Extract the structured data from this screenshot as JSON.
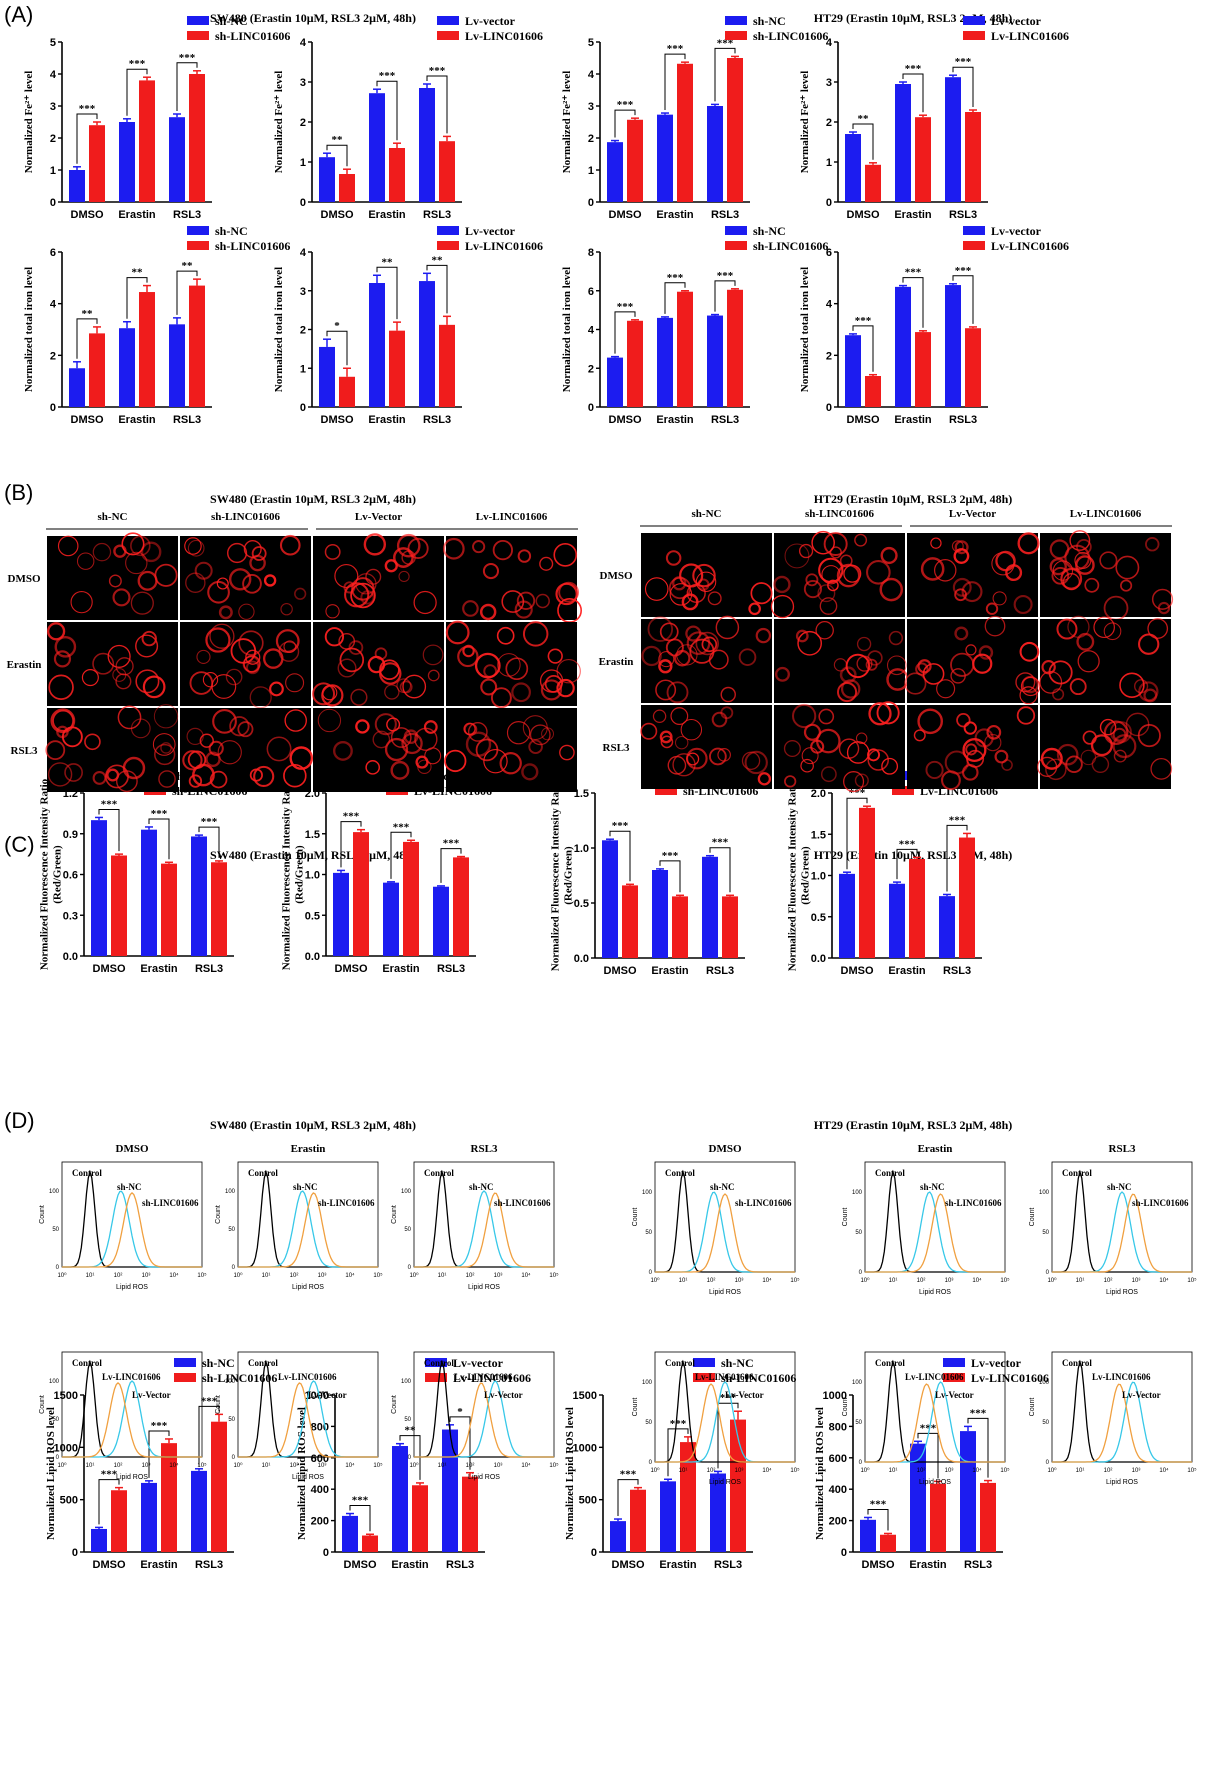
{
  "panel_letters": [
    "(A)",
    "(B)",
    "(C)",
    "(D)"
  ],
  "titles": {
    "A_sw480": "SW480  (Erastin 10μM, RSL3 2μM, 48h)",
    "A_ht29": "HT29  (Erastin 10μM, RSL3 2μM, 48h)",
    "B_sw480": "SW480  (Erastin 10μM, RSL3 2μM, 48h)",
    "B_ht29": "HT29  (Erastin 10μM, RSL3 2μM, 48h)",
    "C_sw480": "SW480  (Erastin 10μM, RSL3 2μM, 48h)",
    "C_ht29": "HT29  (Erastin 10μM, RSL3 2μM, 48h)",
    "D_sw480": "SW480  (Erastin 10μM, RSL3 2μM, 48h)",
    "D_ht29": "HT29  (Erastin 10μM, RSL3 2μM, 48h)"
  },
  "colors": {
    "blue": "#1c1cf0",
    "red": "#f01c1c",
    "black": "#000000",
    "cyan": "#38c8e8",
    "orange": "#f0a040",
    "micro_bg": "#000000",
    "micro_cell": "#ff2020"
  },
  "microscopy": {
    "columns": [
      "sh-NC",
      "sh-LINC01606",
      "Lv-Vector",
      "Lv-LINC01606"
    ],
    "rows": [
      "DMSO",
      "Erastin",
      "RSL3"
    ]
  },
  "flow": {
    "col_titles": [
      "DMSO",
      "Erastin",
      "RSL3"
    ],
    "xlabel": "Lipid ROS",
    "ylabel": "Count",
    "xticks": [
      "10⁰",
      "10¹",
      "10²",
      "10³",
      "10⁴",
      "10⁵"
    ],
    "control_label": "Control",
    "sh_labels": [
      "sh-NC",
      "sh-LINC01606"
    ],
    "lv_labels": [
      "Lv-LINC01606",
      "Lv-Vector"
    ]
  },
  "chart_data": [
    {
      "id": "A1",
      "type": "bar",
      "categories": [
        "DMSO",
        "Erastin",
        "RSL3"
      ],
      "ylabel": "Normalized Fe²⁺ level",
      "ylim": [
        0,
        5
      ],
      "yticks": [
        0,
        1,
        2,
        3,
        4,
        5
      ],
      "series": [
        {
          "name": "sh-NC",
          "values": [
            1.0,
            2.5,
            2.65
          ]
        },
        {
          "name": "sh-LINC01606",
          "values": [
            2.4,
            3.8,
            4.0
          ]
        }
      ],
      "errors": [
        [
          0.1,
          0.1,
          0.1
        ],
        [
          0.1,
          0.1,
          0.1
        ]
      ],
      "significance": [
        "***",
        "***",
        "***"
      ]
    },
    {
      "id": "A2",
      "type": "bar",
      "categories": [
        "DMSO",
        "Erastin",
        "RSL3"
      ],
      "ylabel": "Normalized Fe²⁺ level",
      "ylim": [
        0,
        4
      ],
      "yticks": [
        0,
        1,
        2,
        3,
        4
      ],
      "series": [
        {
          "name": "Lv-vector",
          "values": [
            1.12,
            2.72,
            2.85
          ]
        },
        {
          "name": "Lv-LINC01606",
          "values": [
            0.7,
            1.35,
            1.52
          ]
        }
      ],
      "errors": [
        [
          0.1,
          0.1,
          0.1
        ],
        [
          0.12,
          0.12,
          0.12
        ]
      ],
      "significance": [
        "**",
        "***",
        "***"
      ]
    },
    {
      "id": "A3",
      "type": "bar",
      "categories": [
        "DMSO",
        "Erastin",
        "RSL3"
      ],
      "ylabel": "Normalized Fe²⁺ level",
      "ylim": [
        0,
        5
      ],
      "yticks": [
        0,
        1,
        2,
        3,
        4,
        5
      ],
      "series": [
        {
          "name": "sh-NC",
          "values": [
            1.87,
            2.73,
            3.0
          ]
        },
        {
          "name": "sh-LINC01606",
          "values": [
            2.57,
            4.32,
            4.5
          ]
        }
      ],
      "errors": [
        [
          0.05,
          0.05,
          0.05
        ],
        [
          0.05,
          0.05,
          0.05
        ]
      ],
      "significance": [
        "***",
        "***",
        "***"
      ]
    },
    {
      "id": "A4",
      "type": "bar",
      "categories": [
        "DMSO",
        "Erastin",
        "RSL3"
      ],
      "ylabel": "Normalized Fe²⁺ level",
      "ylim": [
        0,
        4
      ],
      "yticks": [
        0,
        1,
        2,
        3,
        4
      ],
      "series": [
        {
          "name": "Lv-vector",
          "values": [
            1.7,
            2.95,
            3.12
          ]
        },
        {
          "name": "Lv-LINC01606",
          "values": [
            0.93,
            2.12,
            2.25
          ]
        }
      ],
      "errors": [
        [
          0.05,
          0.05,
          0.05
        ],
        [
          0.05,
          0.05,
          0.05
        ]
      ],
      "significance": [
        "**",
        "***",
        "***"
      ]
    },
    {
      "id": "A5",
      "type": "bar",
      "categories": [
        "DMSO",
        "Erastin",
        "RSL3"
      ],
      "ylabel": "Normalized total iron level",
      "ylim": [
        0,
        6
      ],
      "yticks": [
        0,
        2,
        4,
        6
      ],
      "series": [
        {
          "name": "sh-NC",
          "values": [
            1.5,
            3.05,
            3.2
          ]
        },
        {
          "name": "sh-LINC01606",
          "values": [
            2.85,
            4.45,
            4.7
          ]
        }
      ],
      "errors": [
        [
          0.25,
          0.25,
          0.25
        ],
        [
          0.25,
          0.25,
          0.25
        ]
      ],
      "significance": [
        "**",
        "**",
        "**"
      ]
    },
    {
      "id": "A6",
      "type": "bar",
      "categories": [
        "DMSO",
        "Erastin",
        "RSL3"
      ],
      "ylabel": "Normalized total iron level",
      "ylim": [
        0,
        4
      ],
      "yticks": [
        0,
        1,
        2,
        3,
        4
      ],
      "series": [
        {
          "name": "Lv-vector",
          "values": [
            1.55,
            3.2,
            3.25
          ]
        },
        {
          "name": "Lv-LINC01606",
          "values": [
            0.78,
            1.97,
            2.12
          ]
        }
      ],
      "errors": [
        [
          0.2,
          0.2,
          0.2
        ],
        [
          0.22,
          0.22,
          0.22
        ]
      ],
      "significance": [
        "*",
        "**",
        "**"
      ]
    },
    {
      "id": "A7",
      "type": "bar",
      "categories": [
        "DMSO",
        "Erastin",
        "RSL3"
      ],
      "ylabel": "Normalized total iron level",
      "ylim": [
        0,
        8
      ],
      "yticks": [
        0,
        2,
        4,
        6,
        8
      ],
      "series": [
        {
          "name": "sh-NC",
          "values": [
            2.55,
            4.6,
            4.72
          ]
        },
        {
          "name": "sh-LINC01606",
          "values": [
            4.45,
            5.95,
            6.05
          ]
        }
      ],
      "errors": [
        [
          0.05,
          0.05,
          0.05
        ],
        [
          0.05,
          0.05,
          0.05
        ]
      ],
      "significance": [
        "***",
        "***",
        "***"
      ]
    },
    {
      "id": "A8",
      "type": "bar",
      "categories": [
        "DMSO",
        "Erastin",
        "RSL3"
      ],
      "ylabel": "Normalized total iron level",
      "ylim": [
        0,
        6
      ],
      "yticks": [
        0,
        2,
        4,
        6
      ],
      "series": [
        {
          "name": "Lv-vector",
          "values": [
            2.78,
            4.65,
            4.72
          ]
        },
        {
          "name": "Lv-LINC01606",
          "values": [
            1.2,
            2.9,
            3.05
          ]
        }
      ],
      "errors": [
        [
          0.05,
          0.05,
          0.05
        ],
        [
          0.05,
          0.05,
          0.05
        ]
      ],
      "significance": [
        "***",
        "***",
        "***"
      ]
    },
    {
      "id": "C1",
      "type": "bar",
      "categories": [
        "DMSO",
        "Erastin",
        "RSL3"
      ],
      "ylabel": "Normalized Fluorescence Intensity Ratio (Red/Green)",
      "ylim": [
        0,
        1.2
      ],
      "yticks": [
        "0.0",
        "0.3",
        "0.6",
        "0.9",
        "1.2"
      ],
      "series": [
        {
          "name": "sh-NC",
          "values": [
            1.0,
            0.93,
            0.88
          ]
        },
        {
          "name": "sh-LINC01606",
          "values": [
            0.74,
            0.68,
            0.69
          ]
        }
      ],
      "errors": [
        [
          0.02,
          0.02,
          0.01
        ],
        [
          0.01,
          0.01,
          0.01
        ]
      ],
      "significance": [
        "***",
        "***",
        "***"
      ]
    },
    {
      "id": "C2",
      "type": "bar",
      "categories": [
        "DMSO",
        "Erastin",
        "RSL3"
      ],
      "ylabel": "Normalized Fluorescence Intensity Ratio (Red/Green)",
      "ylim": [
        0,
        2.0
      ],
      "yticks": [
        "0.0",
        "0.5",
        "1.0",
        "1.5",
        "2.0"
      ],
      "series": [
        {
          "name": "Lv-vector",
          "values": [
            1.02,
            0.9,
            0.85
          ]
        },
        {
          "name": "Lv-LINC01606",
          "values": [
            1.52,
            1.4,
            1.21
          ]
        }
      ],
      "errors": [
        [
          0.03,
          0.01,
          0.01
        ],
        [
          0.03,
          0.02,
          0.01
        ]
      ],
      "significance": [
        "***",
        "***",
        "***"
      ]
    },
    {
      "id": "C3",
      "type": "bar",
      "categories": [
        "DMSO",
        "Erastin",
        "RSL3"
      ],
      "ylabel": "Normalized Fluorescence Intensity Ratio (Red/Green)",
      "ylim": [
        0,
        1.5
      ],
      "yticks": [
        "0.0",
        "0.5",
        "1.0",
        "1.5"
      ],
      "series": [
        {
          "name": "sh-NC",
          "values": [
            1.07,
            0.8,
            0.92
          ]
        },
        {
          "name": "sh-LINC01606",
          "values": [
            0.66,
            0.56,
            0.56
          ]
        }
      ],
      "errors": [
        [
          0.01,
          0.01,
          0.01
        ],
        [
          0.01,
          0.01,
          0.01
        ]
      ],
      "significance": [
        "***",
        "***",
        "***"
      ]
    },
    {
      "id": "C4",
      "type": "bar",
      "categories": [
        "DMSO",
        "Erastin",
        "RSL3"
      ],
      "ylabel": "Normalized Fluorescence Intensity Ratio (Red/Green)",
      "ylim": [
        0,
        2.0
      ],
      "yticks": [
        "0.0",
        "0.5",
        "1.0",
        "1.5",
        "2.0"
      ],
      "series": [
        {
          "name": "Lv-vector",
          "values": [
            1.02,
            0.9,
            0.75
          ]
        },
        {
          "name": "Lv-LINC01606",
          "values": [
            1.82,
            1.2,
            1.46
          ]
        }
      ],
      "errors": [
        [
          0.02,
          0.02,
          0.02
        ],
        [
          0.02,
          0.02,
          0.05
        ]
      ],
      "significance": [
        "***",
        "***",
        "***"
      ]
    },
    {
      "id": "D1",
      "type": "bar",
      "categories": [
        "DMSO",
        "Erastin",
        "RSL3"
      ],
      "ylabel": "Normalized Lipid ROS level",
      "ylim": [
        0,
        1500
      ],
      "yticks": [
        0,
        500,
        1000,
        1500
      ],
      "series": [
        {
          "name": "sh-NC",
          "values": [
            220,
            660,
            775
          ]
        },
        {
          "name": "sh-LINC01606",
          "values": [
            590,
            1040,
            1245
          ]
        }
      ],
      "errors": [
        [
          15,
          20,
          20
        ],
        [
          25,
          40,
          70
        ]
      ],
      "significance": [
        "***",
        "***",
        "***"
      ]
    },
    {
      "id": "D2",
      "type": "bar",
      "categories": [
        "DMSO",
        "Erastin",
        "RSL3"
      ],
      "ylabel": "Normalized Lipid ROS level",
      "ylim": [
        0,
        1000
      ],
      "yticks": [
        0,
        200,
        400,
        600,
        800,
        1000
      ],
      "series": [
        {
          "name": "Lv-vector",
          "values": [
            230,
            675,
            780
          ]
        },
        {
          "name": "Lv-LINC01606",
          "values": [
            105,
            425,
            480
          ]
        }
      ],
      "errors": [
        [
          15,
          15,
          30
        ],
        [
          8,
          15,
          25
        ]
      ],
      "significance": [
        "***",
        "**",
        "*"
      ]
    },
    {
      "id": "D3",
      "type": "bar",
      "categories": [
        "DMSO",
        "Erastin",
        "RSL3"
      ],
      "ylabel": "Normalized Lipid ROS level",
      "ylim": [
        0,
        1500
      ],
      "yticks": [
        0,
        500,
        1000,
        1500
      ],
      "series": [
        {
          "name": "sh-NC",
          "values": [
            295,
            675,
            750
          ]
        },
        {
          "name": "sh-LINC01606",
          "values": [
            595,
            1050,
            1265
          ]
        }
      ],
      "errors": [
        [
          20,
          20,
          20
        ],
        [
          20,
          50,
          80
        ]
      ],
      "significance": [
        "***",
        "***",
        "***"
      ]
    },
    {
      "id": "D4",
      "type": "bar",
      "categories": [
        "DMSO",
        "Erastin",
        "RSL3"
      ],
      "ylabel": "Normalized Lipid ROS level",
      "ylim": [
        0,
        1000
      ],
      "yticks": [
        0,
        200,
        400,
        600,
        800,
        1000
      ],
      "series": [
        {
          "name": "Lv-vector",
          "values": [
            205,
            690,
            770
          ]
        },
        {
          "name": "Lv-LINC01606",
          "values": [
            110,
            435,
            440
          ]
        }
      ],
      "errors": [
        [
          15,
          15,
          30
        ],
        [
          8,
          15,
          15
        ]
      ],
      "significance": [
        "***",
        "***",
        "***"
      ]
    }
  ]
}
